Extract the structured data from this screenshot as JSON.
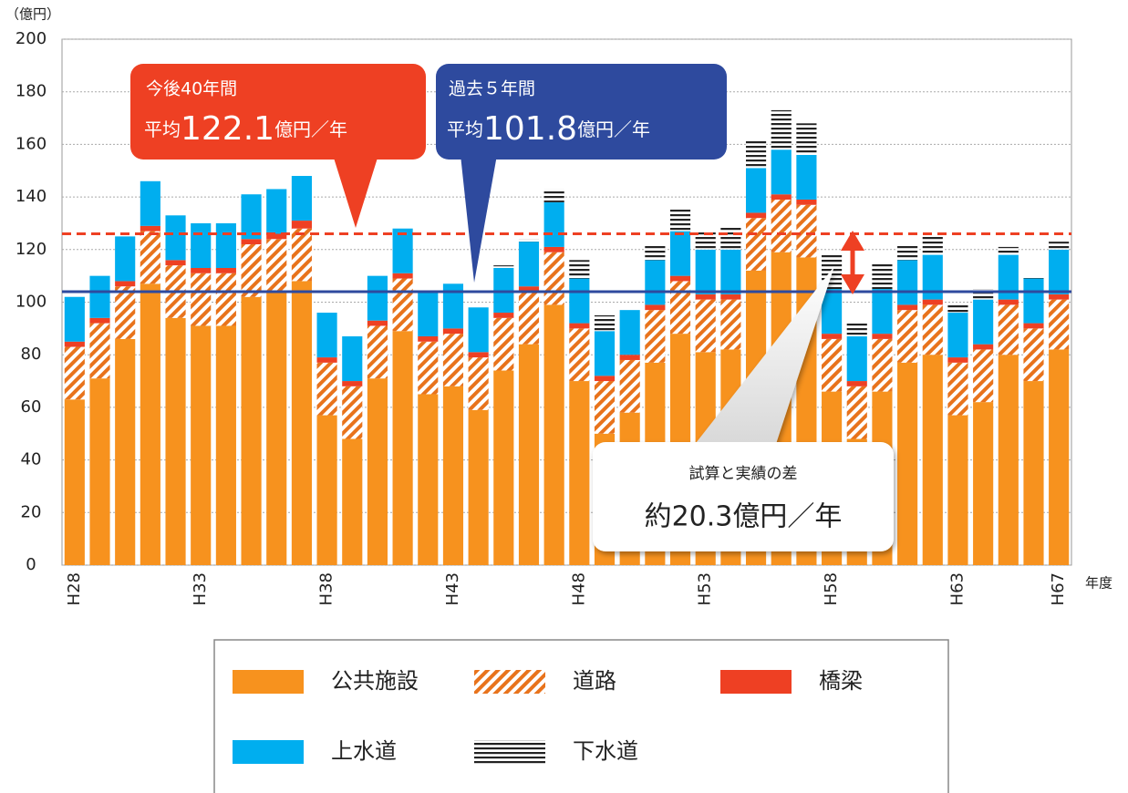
{
  "chart_data": {
    "type": "stacked_bar",
    "y_label": "（億円）",
    "x_label": "年度",
    "categories": [
      "H28",
      null,
      null,
      null,
      null,
      "H33",
      null,
      null,
      null,
      null,
      "H38",
      null,
      null,
      null,
      null,
      "H43",
      null,
      null,
      null,
      null,
      "H48",
      null,
      null,
      null,
      null,
      "H53",
      null,
      null,
      null,
      null,
      "H58",
      null,
      null,
      null,
      null,
      "H63",
      null,
      null,
      null,
      "H67"
    ],
    "series": [
      {
        "name": "公共施設",
        "color": "#f7921e",
        "pattern": "solid",
        "values": [
          63,
          71,
          86,
          107,
          94,
          91,
          91,
          102,
          104,
          108,
          57,
          48,
          71,
          89,
          65,
          68,
          59,
          74,
          84,
          99,
          70,
          50,
          58,
          77,
          88,
          81,
          82,
          112,
          119,
          117,
          66,
          48,
          66,
          77,
          80,
          57,
          62,
          80,
          70,
          82
        ]
      },
      {
        "name": "道路",
        "color": "#e8731c",
        "pattern": "diagonal",
        "values": [
          20,
          21,
          20,
          20,
          20,
          20,
          20,
          20,
          20,
          20,
          20,
          20,
          20,
          20,
          20,
          20,
          20,
          20,
          20,
          20,
          20,
          20,
          20,
          20,
          20,
          20,
          19,
          20,
          20,
          20,
          20,
          20,
          20,
          20,
          19,
          20,
          20,
          19,
          20,
          19
        ]
      },
      {
        "name": "橋梁",
        "color": "#ee4023",
        "pattern": "solid",
        "values": [
          2,
          2,
          2,
          2,
          2,
          2,
          2,
          2,
          2,
          3,
          2,
          2,
          2,
          2,
          2,
          2,
          2,
          2,
          2,
          2,
          2,
          2,
          2,
          2,
          2,
          2,
          2,
          2,
          2,
          2,
          2,
          2,
          2,
          2,
          2,
          2,
          2,
          2,
          2,
          2
        ]
      },
      {
        "name": "上水道",
        "color": "#00aeef",
        "pattern": "solid",
        "values": [
          17,
          16,
          17,
          17,
          17,
          17,
          17,
          17,
          17,
          17,
          17,
          17,
          17,
          17,
          17,
          17,
          17,
          17,
          17,
          17,
          17,
          17,
          17,
          17,
          17,
          17,
          17,
          17,
          17,
          17,
          17,
          17,
          17,
          17,
          17,
          17,
          17,
          17,
          17,
          17
        ]
      },
      {
        "name": "下水道",
        "color": "#222222",
        "pattern": "horizontal",
        "values": [
          0,
          0,
          0,
          0,
          0,
          0,
          0,
          0,
          0,
          0,
          0,
          0,
          0,
          0,
          0,
          0,
          0,
          1,
          1,
          5,
          7,
          6,
          0,
          6,
          9,
          7,
          9,
          11,
          15,
          12,
          13,
          5,
          10,
          6,
          7,
          3,
          4,
          3,
          1,
          3
        ]
      }
    ],
    "ylim": [
      0,
      200
    ],
    "yticks": [
      0,
      20,
      40,
      60,
      80,
      100,
      120,
      140,
      160,
      180,
      200
    ],
    "grid": true,
    "reference_lines": [
      {
        "value": 126,
        "color": "#ee4023",
        "style": "dashed"
      },
      {
        "value": 104,
        "color": "#2e4a9e",
        "style": "solid"
      }
    ],
    "callouts": [
      {
        "line1": "今後40年間",
        "prefix": "平均",
        "number": "122.1",
        "unit": "億円／年"
      },
      {
        "line1": "過去５年間",
        "prefix": "平均",
        "number": "101.8",
        "unit": "億円／年"
      },
      {
        "line1": "試算と実績の差",
        "line2": "約20.3億円／年"
      }
    ]
  }
}
